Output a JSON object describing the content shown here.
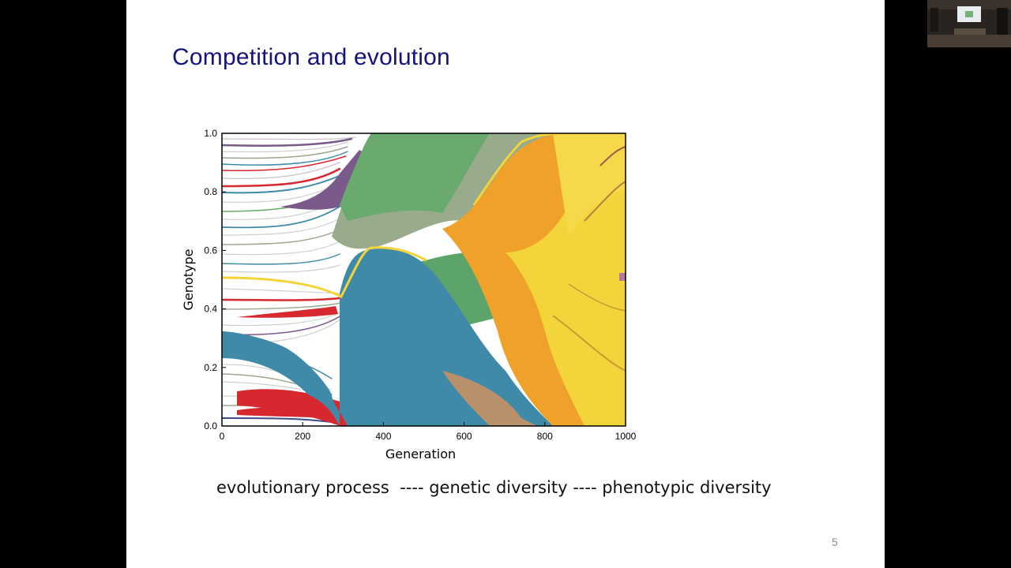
{
  "slide": {
    "title": "Competition and evolution",
    "caption": "evolutionary process  ---- genetic diversity ---- phenotypic diversity",
    "page_number": "5"
  },
  "colors": {
    "title": "#13137a",
    "plot_blue": "#3f8aa8",
    "plot_yellow": "#f3d43a",
    "plot_orange": "#f0a12a",
    "plot_green": "#6aaa6e",
    "plot_gray": "#9aa88e",
    "plot_red": "#d8282f",
    "plot_purple": "#7a5a8a"
  },
  "video_thumbnail": {
    "icon": "presenter-camera-icon"
  },
  "chart_data": {
    "type": "area",
    "xlabel": "Generation",
    "ylabel": "Genotype",
    "xlim": [
      0,
      1000
    ],
    "ylim": [
      0.0,
      1.0
    ],
    "xticks": [
      "0",
      "200",
      "400",
      "600",
      "800",
      "1000"
    ],
    "yticks": [
      "0.0",
      "0.2",
      "0.4",
      "0.6",
      "0.8",
      "1.0"
    ],
    "grid": false,
    "legend": "none",
    "x": [
      0,
      200,
      280,
      320,
      360,
      400,
      500,
      560,
      600,
      680,
      720,
      800,
      900,
      1000
    ],
    "series": [
      {
        "color": "#d8282f",
        "values": [
          0.03,
          0.04,
          0.06,
          0.05,
          0.04,
          0.0,
          0.0,
          0.0,
          0.0,
          0.0,
          0.0,
          0.0,
          0.0,
          0.0
        ]
      },
      {
        "color": "#3f8aa8",
        "values": [
          0.0,
          0.0,
          0.01,
          0.38,
          0.55,
          0.58,
          0.44,
          0.3,
          0.22,
          0.1,
          0.05,
          0.0,
          0.0,
          0.0
        ]
      },
      {
        "color": "#6aaa6e",
        "values": [
          0.0,
          0.0,
          0.0,
          0.1,
          0.2,
          0.22,
          0.28,
          0.3,
          0.3,
          0.22,
          0.18,
          0.05,
          0.0,
          0.0
        ]
      },
      {
        "color": "#f0a12a",
        "values": [
          0.0,
          0.0,
          0.0,
          0.0,
          0.0,
          0.0,
          0.0,
          0.05,
          0.12,
          0.4,
          0.5,
          0.45,
          0.05,
          0.0
        ]
      },
      {
        "color": "#f3d43a",
        "values": [
          0.0,
          0.0,
          0.0,
          0.0,
          0.0,
          0.0,
          0.0,
          0.0,
          0.05,
          0.18,
          0.27,
          0.5,
          0.95,
          1.0
        ]
      }
    ]
  }
}
